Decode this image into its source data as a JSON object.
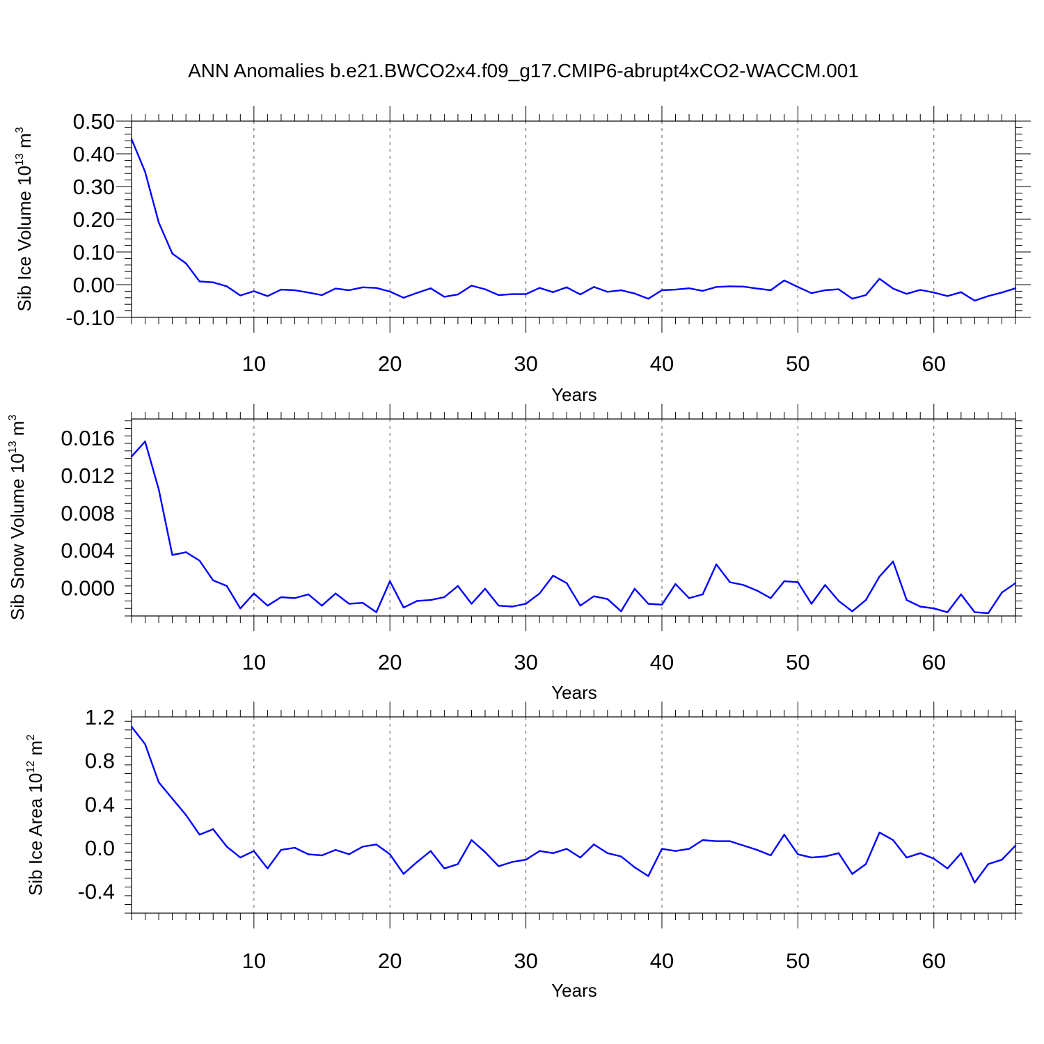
{
  "title": "ANN Anomalies b.e21.BWCO2x4.f09_g17.CMIP6-abrupt4xCO2-WACCM.001",
  "line_color": "#0000ff",
  "chart_data": [
    {
      "type": "line",
      "xlabel": "Years",
      "ylabel": {
        "text": "Sib Ice Volume 10",
        "exp": "13",
        "unit": " m",
        "unit_exp": "3"
      },
      "xlim": [
        1,
        66
      ],
      "ylim": [
        -0.1,
        0.5
      ],
      "xticks": [
        10,
        20,
        30,
        40,
        50,
        60
      ],
      "xtick_labels": [
        "10",
        "20",
        "30",
        "40",
        "50",
        "60"
      ],
      "yticks": [
        -0.1,
        0.0,
        0.1,
        0.2,
        0.3,
        0.4,
        0.5
      ],
      "ytick_labels": [
        "-0.10",
        "0.00",
        "0.10",
        "0.20",
        "0.30",
        "0.40",
        "0.50"
      ],
      "grid": "dashed vertical at major x ticks",
      "x": [
        1,
        2,
        3,
        4,
        5,
        6,
        7,
        8,
        9,
        10,
        11,
        12,
        13,
        14,
        15,
        16,
        17,
        18,
        19,
        20,
        21,
        22,
        23,
        24,
        25,
        26,
        27,
        28,
        29,
        30,
        31,
        32,
        33,
        34,
        35,
        36,
        37,
        38,
        39,
        40,
        41,
        42,
        43,
        44,
        45,
        46,
        47,
        48,
        49,
        50,
        51,
        52,
        53,
        54,
        55,
        56,
        57,
        58,
        59,
        60,
        61,
        62,
        63,
        64,
        65,
        66
      ],
      "values": [
        0.445,
        0.345,
        0.19,
        0.095,
        0.065,
        0.01,
        0.007,
        -0.005,
        -0.033,
        -0.02,
        -0.035,
        -0.015,
        -0.017,
        -0.024,
        -0.032,
        -0.012,
        -0.017,
        -0.008,
        -0.01,
        -0.021,
        -0.04,
        -0.025,
        -0.011,
        -0.037,
        -0.03,
        -0.003,
        -0.014,
        -0.032,
        -0.029,
        -0.029,
        -0.01,
        -0.023,
        -0.008,
        -0.03,
        -0.007,
        -0.022,
        -0.017,
        -0.027,
        -0.043,
        -0.017,
        -0.015,
        -0.011,
        -0.019,
        -0.007,
        -0.005,
        -0.006,
        -0.012,
        -0.017,
        0.013,
        -0.007,
        -0.026,
        -0.017,
        -0.014,
        -0.043,
        -0.032,
        0.018,
        -0.012,
        -0.028,
        -0.016,
        -0.024,
        -0.035,
        -0.023,
        -0.049,
        -0.035,
        -0.024,
        -0.011
      ]
    },
    {
      "type": "line",
      "xlabel": "Years",
      "ylabel": {
        "text": "Sib Snow Volume 10",
        "exp": "13",
        "unit": " m",
        "unit_exp": "3"
      },
      "xlim": [
        1,
        66
      ],
      "ylim": [
        -0.003,
        0.018
      ],
      "xticks": [
        10,
        20,
        30,
        40,
        50,
        60
      ],
      "xtick_labels": [
        "10",
        "20",
        "30",
        "40",
        "50",
        "60"
      ],
      "yticks": [
        0.0,
        0.004,
        0.008,
        0.012,
        0.016
      ],
      "ytick_labels": [
        "0.000",
        "0.004",
        "0.008",
        "0.012",
        "0.016"
      ],
      "grid": "dashed vertical at major x ticks",
      "x": [
        1,
        2,
        3,
        4,
        5,
        6,
        7,
        8,
        9,
        10,
        11,
        12,
        13,
        14,
        15,
        16,
        17,
        18,
        19,
        20,
        21,
        22,
        23,
        24,
        25,
        26,
        27,
        28,
        29,
        30,
        31,
        32,
        33,
        34,
        35,
        36,
        37,
        38,
        39,
        40,
        41,
        42,
        43,
        44,
        45,
        46,
        47,
        48,
        49,
        50,
        51,
        52,
        53,
        54,
        55,
        56,
        57,
        58,
        59,
        60,
        61,
        62,
        63,
        64,
        65,
        66
      ],
      "values": [
        0.014,
        0.0156,
        0.0105,
        0.0035,
        0.0038,
        0.0029,
        0.0008,
        0.0002,
        -0.0022,
        -0.0006,
        -0.0019,
        -0.001,
        -0.0011,
        -0.0007,
        -0.0019,
        -0.0006,
        -0.0017,
        -0.0016,
        -0.0026,
        0.0007,
        -0.0021,
        -0.0014,
        -0.0013,
        -0.001,
        0.0002,
        -0.0017,
        -0.0001,
        -0.0019,
        -0.002,
        -0.0017,
        -0.0006,
        0.0013,
        0.0005,
        -0.0019,
        -0.0009,
        -0.0012,
        -0.0025,
        -0.0001,
        -0.0017,
        -0.0018,
        0.0004,
        -0.0011,
        -0.0007,
        0.0025,
        0.0006,
        0.0003,
        -0.0003,
        -0.0011,
        0.0007,
        0.0006,
        -0.0017,
        0.0003,
        -0.0014,
        -0.0025,
        -0.0013,
        0.0012,
        0.0028,
        -0.0013,
        -0.002,
        -0.0022,
        -0.0026,
        -0.0007,
        -0.0026,
        -0.0027,
        -0.0005,
        0.0005
      ]
    },
    {
      "type": "line",
      "xlabel": "Years",
      "ylabel": {
        "text": "Sib Ice Area 10",
        "exp": "12",
        "unit": " m",
        "unit_exp": "2"
      },
      "xlim": [
        1,
        66
      ],
      "ylim": [
        -0.6,
        1.2
      ],
      "xticks": [
        10,
        20,
        30,
        40,
        50,
        60
      ],
      "xtick_labels": [
        "10",
        "20",
        "30",
        "40",
        "50",
        "60"
      ],
      "yticks": [
        -0.4,
        0.0,
        0.4,
        0.8,
        1.2
      ],
      "ytick_labels": [
        "-0.4",
        "0.0",
        "0.4",
        "0.8",
        "1.2"
      ],
      "grid": "dashed vertical at major x ticks",
      "x": [
        1,
        2,
        3,
        4,
        5,
        6,
        7,
        8,
        9,
        10,
        11,
        12,
        13,
        14,
        15,
        16,
        17,
        18,
        19,
        20,
        21,
        22,
        23,
        24,
        25,
        26,
        27,
        28,
        29,
        30,
        31,
        32,
        33,
        34,
        35,
        36,
        37,
        38,
        39,
        40,
        41,
        42,
        43,
        44,
        45,
        46,
        47,
        48,
        49,
        50,
        51,
        52,
        53,
        54,
        55,
        56,
        57,
        58,
        59,
        60,
        61,
        62,
        63,
        64,
        65,
        66
      ],
      "values": [
        1.11,
        0.95,
        0.6,
        0.45,
        0.3,
        0.12,
        0.17,
        0.01,
        -0.09,
        -0.03,
        -0.19,
        -0.02,
        0.0,
        -0.06,
        -0.07,
        -0.02,
        -0.06,
        0.01,
        0.03,
        -0.06,
        -0.24,
        -0.13,
        -0.03,
        -0.19,
        -0.15,
        0.07,
        -0.04,
        -0.17,
        -0.13,
        -0.11,
        -0.03,
        -0.05,
        -0.01,
        -0.09,
        0.03,
        -0.05,
        -0.08,
        -0.18,
        -0.26,
        -0.01,
        -0.03,
        -0.01,
        0.07,
        0.06,
        0.06,
        0.02,
        -0.02,
        -0.07,
        0.12,
        -0.06,
        -0.09,
        -0.08,
        -0.05,
        -0.24,
        -0.15,
        0.14,
        0.07,
        -0.09,
        -0.05,
        -0.1,
        -0.19,
        -0.05,
        -0.32,
        -0.15,
        -0.11,
        0.02
      ]
    }
  ]
}
